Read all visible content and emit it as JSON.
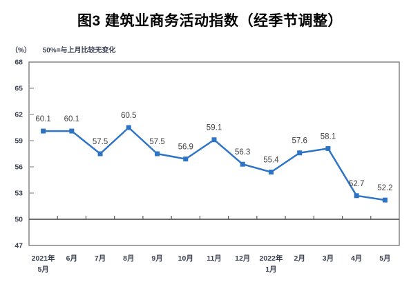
{
  "chart_data": {
    "type": "line",
    "title": "图3 建筑业商务活动指数（经季节调整）",
    "unit_label": "（%）",
    "note": "50%=与上月比较无变化",
    "series_name": "建筑业商务活动指数（经季节调整）",
    "categories": [
      "2021年\n5月",
      "6月",
      "7月",
      "8月",
      "9月",
      "10月",
      "11月",
      "12月",
      "2022年\n1月",
      "2月",
      "3月",
      "4月",
      "5月"
    ],
    "values": [
      60.1,
      60.1,
      57.5,
      60.5,
      57.5,
      56.9,
      59.1,
      56.3,
      55.4,
      57.6,
      58.1,
      52.7,
      52.2
    ],
    "xlabel": "",
    "ylabel": "（%）",
    "ylim": [
      47,
      68
    ],
    "yticks": [
      47,
      50,
      53,
      56,
      59,
      62,
      65,
      68
    ],
    "reference_line": 50,
    "grid": false,
    "legend": "none",
    "marker": "square",
    "line_color": "#2E74C6"
  },
  "colors": {
    "line": "#2E74C6",
    "frame": "#8c8c8c",
    "ref_line": "#595959",
    "axis_text": "#3c4152",
    "data_label": "#3f3f3f",
    "title_text": "#000000",
    "background": "#ffffff"
  }
}
